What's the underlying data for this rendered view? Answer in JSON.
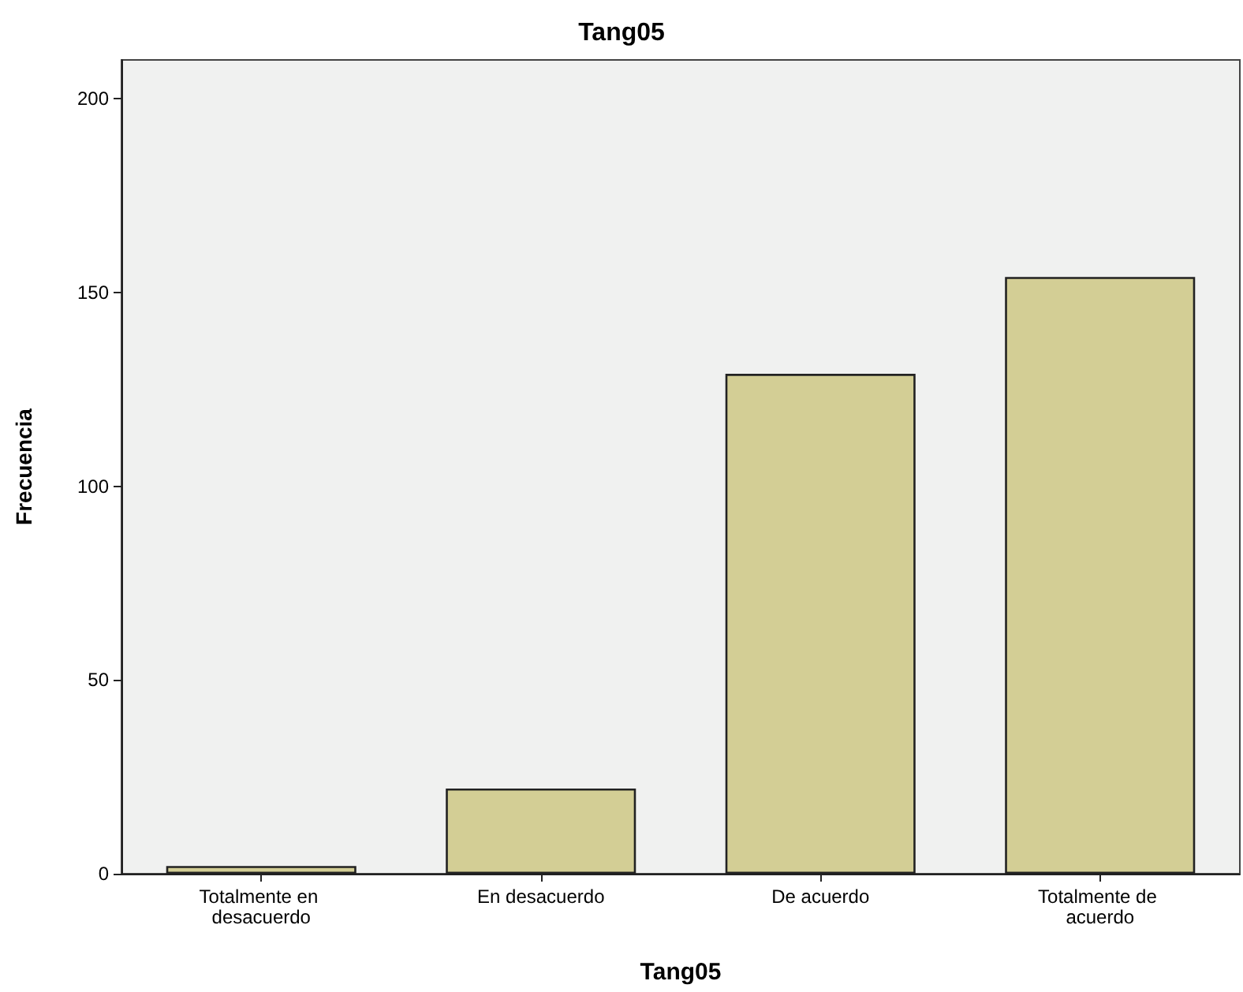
{
  "chart_data": {
    "type": "bar",
    "title": "Tang05",
    "xlabel": "Tang05",
    "ylabel": "Frecuencia",
    "categories": [
      "Totalmente en desacuerdo",
      "En desacuerdo",
      "De acuerdo",
      "Totalmente de acuerdo"
    ],
    "values": [
      2,
      22,
      129,
      154
    ],
    "color": "#d3ce95",
    "ylim": [
      0,
      210
    ],
    "yticks": [
      0,
      50,
      100,
      150,
      200
    ],
    "grid": false
  }
}
